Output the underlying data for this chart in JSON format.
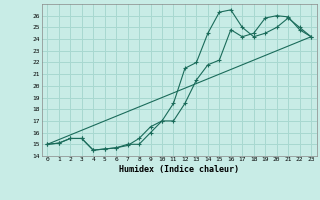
{
  "xlabel": "Humidex (Indice chaleur)",
  "ylabel": "",
  "bg_color": "#c8ece6",
  "grid_color": "#a8d8d0",
  "line_color": "#1a6b5a",
  "xlim": [
    -0.5,
    23.5
  ],
  "ylim": [
    14,
    27
  ],
  "xticks": [
    0,
    1,
    2,
    3,
    4,
    5,
    6,
    7,
    8,
    9,
    10,
    11,
    12,
    13,
    14,
    15,
    16,
    17,
    18,
    19,
    20,
    21,
    22,
    23
  ],
  "yticks": [
    14,
    15,
    16,
    17,
    18,
    19,
    20,
    21,
    22,
    23,
    24,
    25,
    26
  ],
  "series1_x": [
    0,
    1,
    2,
    3,
    4,
    5,
    6,
    7,
    8,
    9,
    10,
    11,
    12,
    13,
    14,
    15,
    16,
    17,
    18,
    19,
    20,
    21,
    22,
    23
  ],
  "series1_y": [
    15.0,
    15.1,
    15.5,
    15.5,
    14.5,
    14.6,
    14.7,
    15.0,
    15.0,
    16.0,
    17.0,
    18.5,
    21.5,
    22.0,
    24.5,
    26.3,
    26.5,
    25.0,
    24.2,
    24.5,
    25.0,
    25.8,
    25.0,
    24.2
  ],
  "series2_x": [
    0,
    1,
    2,
    3,
    4,
    5,
    6,
    7,
    8,
    9,
    10,
    11,
    12,
    13,
    14,
    15,
    16,
    17,
    18,
    19,
    20,
    21,
    22,
    23
  ],
  "series2_y": [
    15.0,
    15.1,
    15.5,
    15.5,
    14.5,
    14.6,
    14.7,
    14.9,
    15.5,
    16.5,
    17.0,
    17.0,
    18.5,
    20.5,
    21.8,
    22.2,
    24.8,
    24.2,
    24.5,
    25.8,
    26.0,
    25.9,
    24.8,
    24.2
  ],
  "series3_x": [
    0,
    23
  ],
  "series3_y": [
    15.0,
    24.2
  ]
}
